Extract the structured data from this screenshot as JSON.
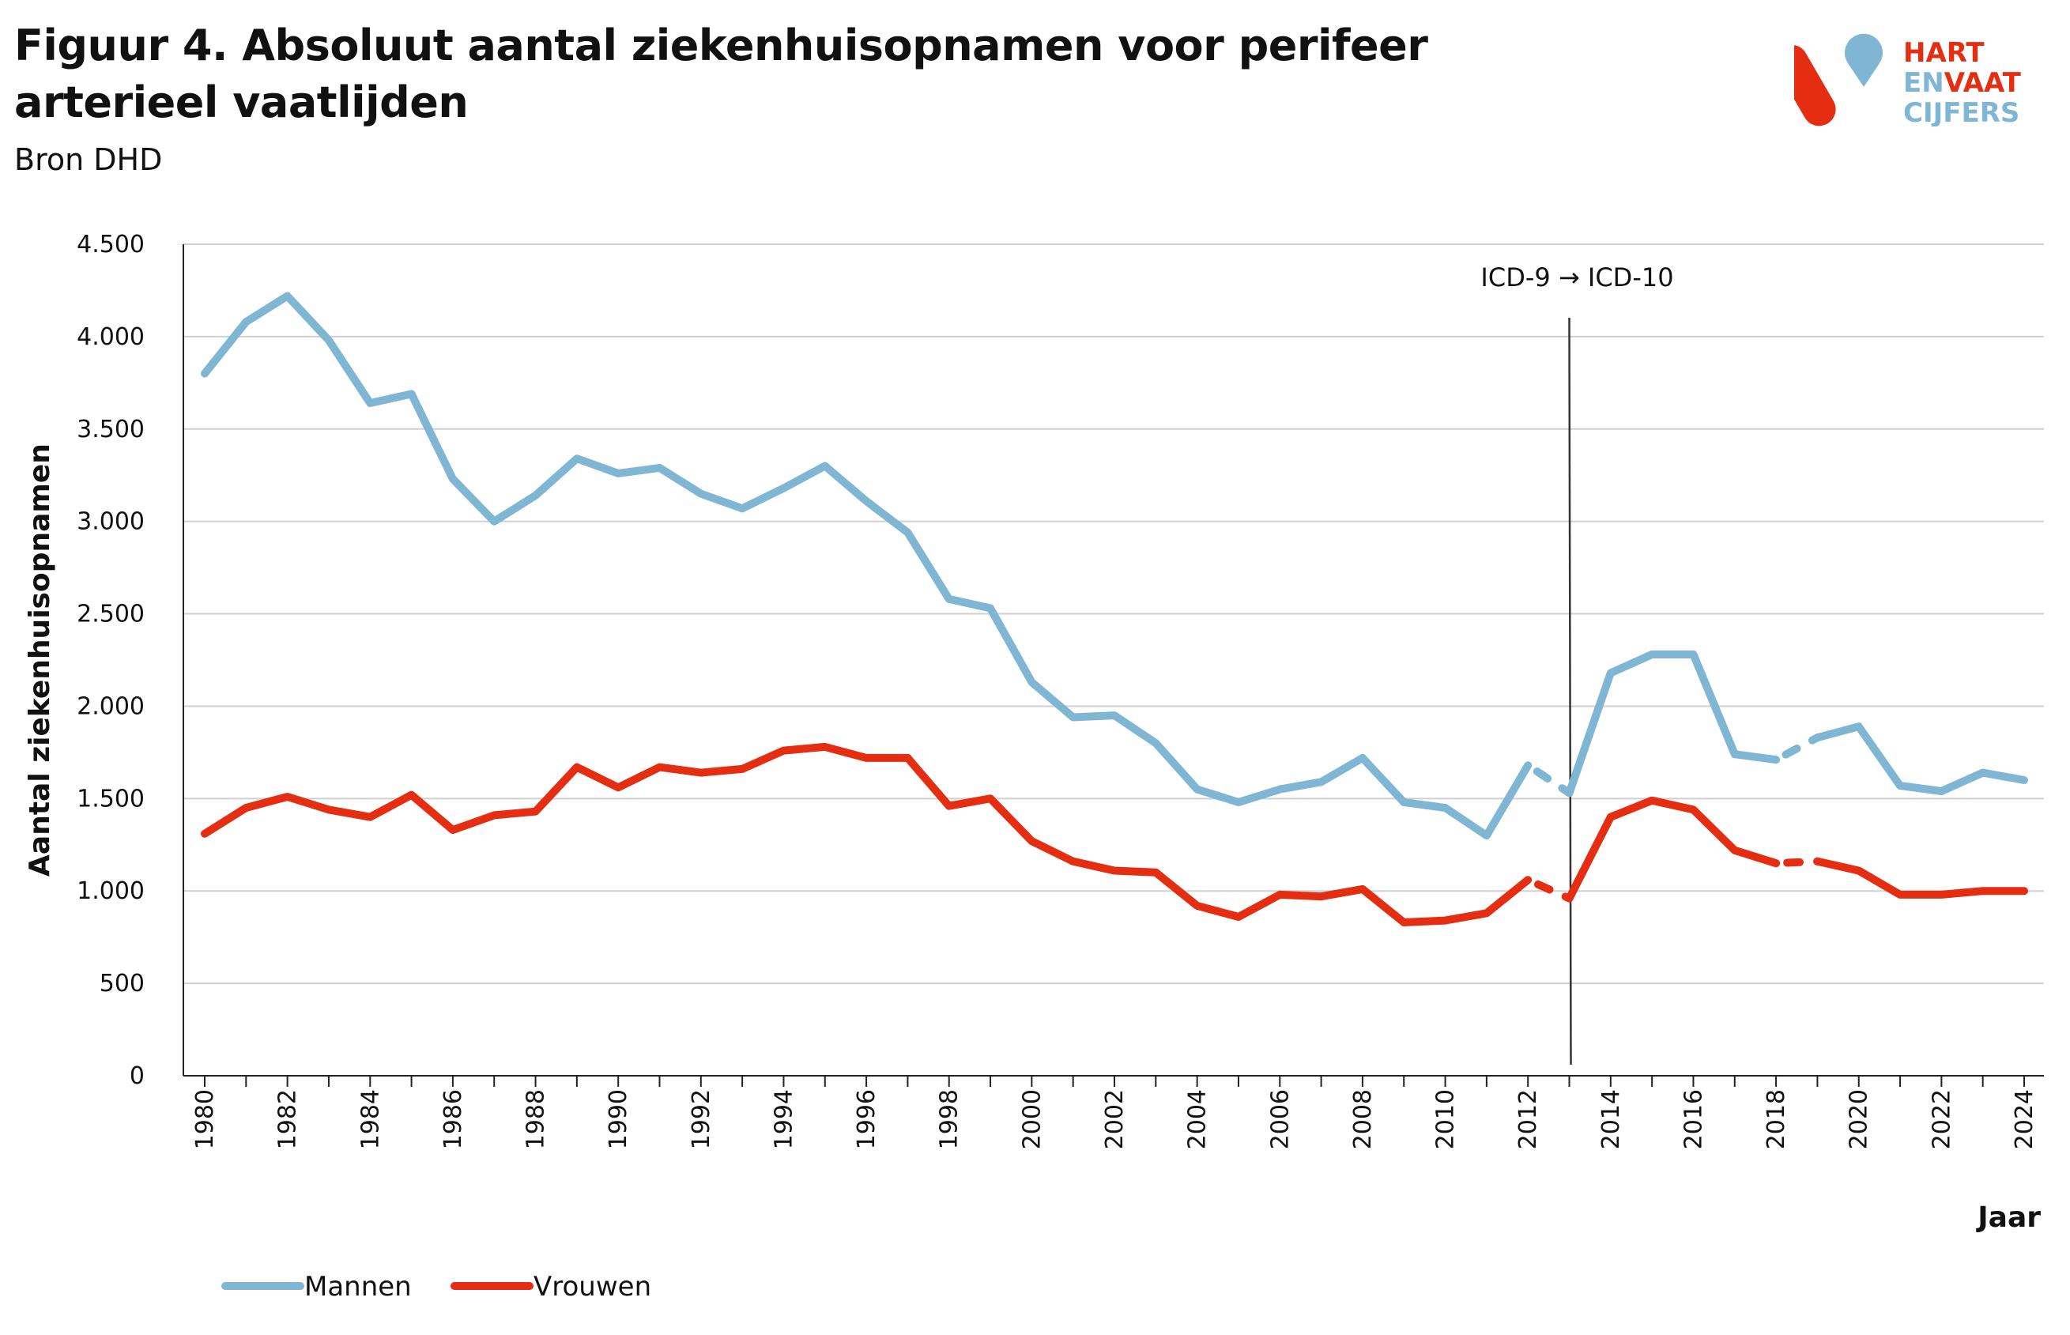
{
  "header": {
    "title": "Figuur 4. Absoluut aantal ziekenhuisopnamen voor perifeer arterieel vaatlijden",
    "subtitle": "Bron DHD"
  },
  "logo": {
    "lines": [
      "HART",
      "ENVAAT",
      "CIJFERS"
    ],
    "colors": {
      "red": "#e52d12",
      "blue": "#7fb6d3"
    }
  },
  "chart_data": {
    "type": "line",
    "title": "Figuur 4. Absoluut aantal ziekenhuisopnamen voor perifeer arterieel vaatlijden",
    "xlabel": "Jaar",
    "ylabel": "Aantal ziekenhuisopnamen",
    "ylim": [
      0,
      4500
    ],
    "yticks": [
      0,
      500,
      1000,
      1500,
      2000,
      2500,
      3000,
      3500,
      4000,
      4500
    ],
    "ytick_labels": [
      "0",
      "500",
      "1.000",
      "1.500",
      "2.000",
      "2.500",
      "3.000",
      "3.500",
      "4.000",
      "4.500"
    ],
    "xlim": [
      1980,
      2024
    ],
    "xtick_labels": [
      "1980",
      "1982",
      "1984",
      "1986",
      "1988",
      "1990",
      "1992",
      "1994",
      "1996",
      "1998",
      "2000",
      "2002",
      "2004",
      "2006",
      "2008",
      "2010",
      "2012",
      "2014",
      "2016",
      "2018",
      "2020",
      "2022",
      "2024"
    ],
    "grid": "horizontal",
    "legend_position": "bottom-left",
    "x": [
      1980,
      1981,
      1982,
      1983,
      1984,
      1985,
      1986,
      1987,
      1988,
      1989,
      1990,
      1991,
      1992,
      1993,
      1994,
      1995,
      1996,
      1997,
      1998,
      1999,
      2000,
      2001,
      2002,
      2003,
      2004,
      2005,
      2006,
      2007,
      2008,
      2009,
      2010,
      2011,
      2012,
      2013,
      2014,
      2015,
      2016,
      2017,
      2018,
      2019,
      2020,
      2021,
      2022,
      2023,
      2024
    ],
    "series": [
      {
        "name": "Mannen",
        "color": "#7fb6d3",
        "values": [
          3800,
          4080,
          4220,
          3980,
          3640,
          3690,
          3230,
          3000,
          3140,
          3340,
          3260,
          3290,
          3150,
          3070,
          3180,
          3300,
          3110,
          2940,
          2580,
          2530,
          2130,
          1940,
          1950,
          1800,
          1550,
          1480,
          1550,
          1590,
          1720,
          1480,
          1450,
          1300,
          1680,
          1530,
          2180,
          2280,
          2280,
          1740,
          1710,
          1830,
          1890,
          1570,
          1540,
          1640,
          1600
        ]
      },
      {
        "name": "Vrouwen",
        "color": "#e52d12",
        "values": [
          1310,
          1450,
          1510,
          1440,
          1400,
          1520,
          1330,
          1410,
          1430,
          1670,
          1560,
          1670,
          1640,
          1660,
          1760,
          1780,
          1720,
          1720,
          1460,
          1500,
          1270,
          1160,
          1110,
          1100,
          920,
          860,
          980,
          970,
          1010,
          830,
          840,
          880,
          1060,
          960,
          1400,
          1490,
          1440,
          1220,
          1150,
          1160,
          1110,
          980,
          980,
          1000,
          1000
        ]
      }
    ],
    "dashed_segments": [
      [
        2012,
        2013
      ],
      [
        2018,
        2019
      ]
    ],
    "annotations": [
      {
        "x": 2013,
        "text": "ICD-9 → ICD-10",
        "type": "vertical-line"
      }
    ]
  }
}
